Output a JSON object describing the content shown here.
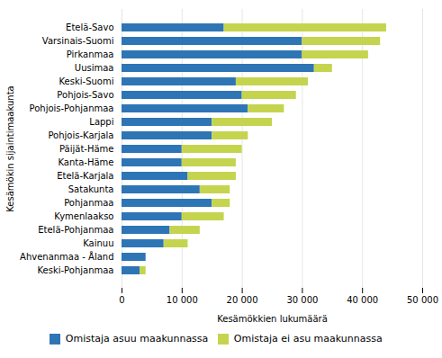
{
  "chart_data": {
    "type": "bar",
    "orientation": "horizontal",
    "stacked": true,
    "categories": [
      "Etelä-Savo",
      "Varsinais-Suomi",
      "Pirkanmaa",
      "Uusimaa",
      "Keski-Suomi",
      "Pohjois-Savo",
      "Pohjois-Pohjanmaa",
      "Lappi",
      "Pohjois-Karjala",
      "Päijät-Häme",
      "Kanta-Häme",
      "Etelä-Karjala",
      "Satakunta",
      "Pohjanmaa",
      "Kymenlaakso",
      "Etelä-Pohjanmaa",
      "Kainuu",
      "Ahvenanmaa - Åland",
      "Keski-Pohjanmaa"
    ],
    "series": [
      {
        "name": "Omistaja asuu maakunnassa",
        "color": "#2E75B6",
        "values": [
          17000,
          30000,
          30000,
          32000,
          19000,
          20000,
          21000,
          15000,
          15000,
          10000,
          10000,
          11000,
          13000,
          15000,
          10000,
          8000,
          7000,
          4000,
          3000
        ]
      },
      {
        "name": "Omistaja ei asu maakunnassa",
        "color": "#C5D44E",
        "values": [
          27000,
          13000,
          11000,
          3000,
          12000,
          9000,
          6000,
          10000,
          6000,
          10000,
          9000,
          8000,
          5000,
          3000,
          7000,
          5000,
          4000,
          0,
          1000
        ]
      }
    ],
    "xlabel": "Kesämökkien lukumäärä",
    "ylabel": "Kesämökin sijaintimaakunta",
    "xlim": [
      0,
      50000
    ],
    "xticks": [
      0,
      {
        "value": 10000,
        "label": "10 000"
      },
      {
        "value": 20000,
        "label": "20 000"
      },
      {
        "value": 30000,
        "label": "30 000"
      },
      {
        "value": 40000,
        "label": "40 000"
      },
      {
        "value": 50000,
        "label": "50 000"
      }
    ],
    "grid": true,
    "legend": "bottom"
  }
}
